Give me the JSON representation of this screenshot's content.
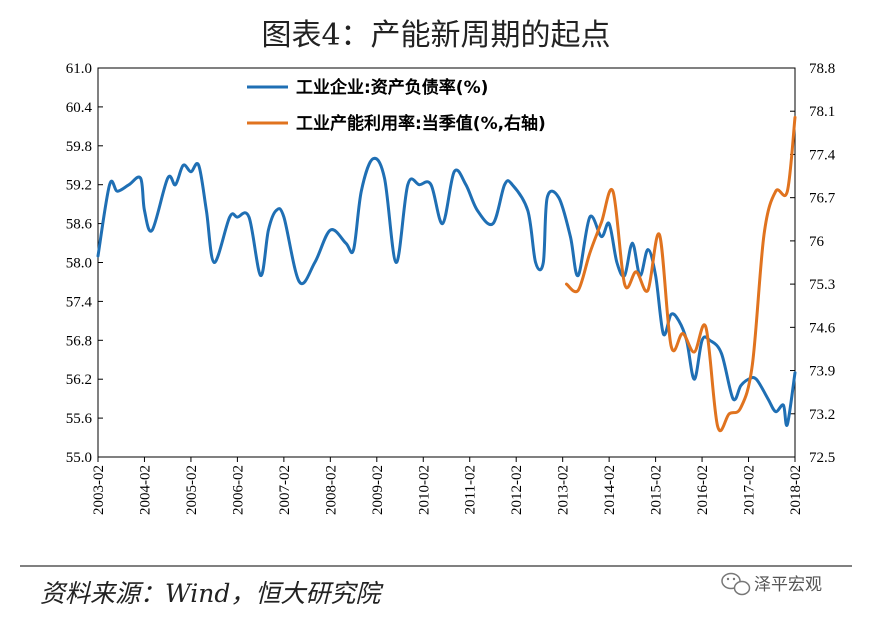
{
  "chart_data": {
    "type": "line",
    "title": "图表4：产能新周期的起点",
    "x_ticks": [
      "2003-02",
      "2004-02",
      "2005-02",
      "2006-02",
      "2007-02",
      "2008-02",
      "2009-02",
      "2010-02",
      "2011-02",
      "2012-02",
      "2013-02",
      "2014-02",
      "2015-02",
      "2016-02",
      "2017-02",
      "2018-02"
    ],
    "y_left_ticks": [
      "61.0",
      "60.4",
      "59.8",
      "59.2",
      "58.6",
      "58.0",
      "57.4",
      "56.8",
      "56.2",
      "55.6",
      "55.0"
    ],
    "y_right_ticks": [
      "78.8",
      "78.1",
      "77.4",
      "76.7",
      "76",
      "75.3",
      "74.6",
      "73.9",
      "73.2",
      "72.5"
    ],
    "ylim_left": [
      55.0,
      61.0
    ],
    "ylim_right": [
      72.5,
      78.8
    ],
    "xlim": [
      "2003-02",
      "2018-02"
    ],
    "legend_position": "top-center",
    "series": [
      {
        "name": "工业企业:资产负债率(%)",
        "axis": "left",
        "color": "#1f6fb4",
        "points": [
          [
            "2003-02",
            58.1
          ],
          [
            "2003-05",
            59.2
          ],
          [
            "2003-07",
            59.1
          ],
          [
            "2003-10",
            59.2
          ],
          [
            "2004-01",
            59.3
          ],
          [
            "2004-02",
            58.8
          ],
          [
            "2004-04",
            58.5
          ],
          [
            "2004-08",
            59.3
          ],
          [
            "2004-10",
            59.2
          ],
          [
            "2004-12",
            59.5
          ],
          [
            "2005-02",
            59.4
          ],
          [
            "2005-04",
            59.5
          ],
          [
            "2005-06",
            58.8
          ],
          [
            "2005-08",
            58.0
          ],
          [
            "2005-12",
            58.7
          ],
          [
            "2006-02",
            58.7
          ],
          [
            "2006-05",
            58.7
          ],
          [
            "2006-08",
            57.8
          ],
          [
            "2006-10",
            58.5
          ],
          [
            "2006-12",
            58.8
          ],
          [
            "2007-02",
            58.7
          ],
          [
            "2007-06",
            57.7
          ],
          [
            "2007-10",
            58.0
          ],
          [
            "2008-02",
            58.5
          ],
          [
            "2008-06",
            58.3
          ],
          [
            "2008-08",
            58.2
          ],
          [
            "2008-10",
            59.1
          ],
          [
            "2009-01",
            59.6
          ],
          [
            "2009-04",
            59.3
          ],
          [
            "2009-07",
            58.0
          ],
          [
            "2009-10",
            59.2
          ],
          [
            "2010-01",
            59.2
          ],
          [
            "2010-04",
            59.2
          ],
          [
            "2010-07",
            58.6
          ],
          [
            "2010-10",
            59.4
          ],
          [
            "2011-01",
            59.2
          ],
          [
            "2011-04",
            58.8
          ],
          [
            "2011-08",
            58.6
          ],
          [
            "2011-11",
            59.2
          ],
          [
            "2012-01",
            59.2
          ],
          [
            "2012-05",
            58.8
          ],
          [
            "2012-07",
            58.0
          ],
          [
            "2012-09",
            58.0
          ],
          [
            "2012-10",
            59.0
          ],
          [
            "2013-01",
            59.0
          ],
          [
            "2013-04",
            58.4
          ],
          [
            "2013-06",
            57.8
          ],
          [
            "2013-09",
            58.7
          ],
          [
            "2013-12",
            58.4
          ],
          [
            "2014-02",
            58.6
          ],
          [
            "2014-04",
            58.0
          ],
          [
            "2014-06",
            57.8
          ],
          [
            "2014-08",
            58.3
          ],
          [
            "2014-10",
            57.8
          ],
          [
            "2014-12",
            58.2
          ],
          [
            "2015-02",
            57.8
          ],
          [
            "2015-04",
            56.9
          ],
          [
            "2015-06",
            57.2
          ],
          [
            "2015-08",
            57.1
          ],
          [
            "2015-10",
            56.8
          ],
          [
            "2015-12",
            56.2
          ],
          [
            "2016-02",
            56.8
          ],
          [
            "2016-04",
            56.8
          ],
          [
            "2016-07",
            56.6
          ],
          [
            "2016-10",
            55.9
          ],
          [
            "2016-12",
            56.1
          ],
          [
            "2017-02",
            56.2
          ],
          [
            "2017-04",
            56.2
          ],
          [
            "2017-07",
            55.9
          ],
          [
            "2017-09",
            55.7
          ],
          [
            "2017-11",
            55.8
          ],
          [
            "2017-12",
            55.5
          ],
          [
            "2018-02",
            56.3
          ]
        ]
      },
      {
        "name": "工业产能利用率:当季值(%,右轴)",
        "axis": "right",
        "color": "#e0731f",
        "points": [
          [
            "2013-03",
            75.3
          ],
          [
            "2013-06",
            75.2
          ],
          [
            "2013-09",
            75.8
          ],
          [
            "2013-12",
            76.3
          ],
          [
            "2014-03",
            76.8
          ],
          [
            "2014-06",
            75.3
          ],
          [
            "2014-09",
            75.5
          ],
          [
            "2014-12",
            75.2
          ],
          [
            "2015-03",
            76.1
          ],
          [
            "2015-06",
            74.3
          ],
          [
            "2015-09",
            74.5
          ],
          [
            "2015-12",
            74.2
          ],
          [
            "2016-03",
            74.6
          ],
          [
            "2016-06",
            73.0
          ],
          [
            "2016-09",
            73.2
          ],
          [
            "2016-12",
            73.3
          ],
          [
            "2017-03",
            74.0
          ],
          [
            "2017-06",
            76.1
          ],
          [
            "2017-09",
            76.8
          ],
          [
            "2017-12",
            76.8
          ],
          [
            "2018-02",
            78.0
          ]
        ]
      }
    ]
  },
  "footer": {
    "source": "资料来源：Wind，恒大研究院",
    "brand": "泽平宏观"
  }
}
